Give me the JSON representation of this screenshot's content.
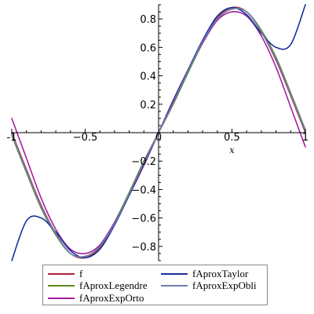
{
  "chart_data": {
    "type": "line",
    "title": "",
    "xlabel": "x",
    "ylabel": "",
    "xlim": [
      -1,
      1
    ],
    "ylim": [
      -0.9,
      0.9
    ],
    "x_ticks": [
      {
        "value": -1,
        "label": "-1"
      },
      {
        "value": -0.5,
        "label": "−0.5"
      },
      {
        "value": 0,
        "label": "0"
      },
      {
        "value": 0.5,
        "label": "0.5"
      },
      {
        "value": 1,
        "label": "1"
      }
    ],
    "y_ticks": [
      {
        "value": 0.8,
        "label": "0.8"
      },
      {
        "value": 0.6,
        "label": "0.6"
      },
      {
        "value": 0.4,
        "label": "0.4"
      },
      {
        "value": 0.2,
        "label": "0.2"
      },
      {
        "value": -0.2,
        "label": "−0.2"
      },
      {
        "value": -0.4,
        "label": "−0.4"
      },
      {
        "value": -0.6,
        "label": "−0.6"
      },
      {
        "value": -0.8,
        "label": "−0.8"
      }
    ],
    "legend_position": "bottom",
    "series": [
      {
        "name": "f",
        "color": "#b0243a",
        "x": [
          -1,
          -0.9,
          -0.8,
          -0.7,
          -0.6,
          -0.5,
          -0.4,
          -0.3,
          -0.2,
          -0.1,
          0,
          0.1,
          0.2,
          0.3,
          0.4,
          0.5,
          0.6,
          0.7,
          0.8,
          0.9,
          1
        ],
        "y": [
          0.0,
          -0.26,
          -0.51,
          -0.71,
          -0.85,
          -0.88,
          -0.81,
          -0.64,
          -0.43,
          -0.21,
          0.0,
          0.21,
          0.43,
          0.64,
          0.81,
          0.88,
          0.85,
          0.71,
          0.51,
          0.26,
          0.0
        ]
      },
      {
        "name": "fAproxLegendre",
        "color": "#5c8a1e",
        "x": [
          -1,
          -0.9,
          -0.8,
          -0.7,
          -0.6,
          -0.5,
          -0.4,
          -0.3,
          -0.2,
          -0.1,
          0,
          0.1,
          0.2,
          0.3,
          0.4,
          0.5,
          0.6,
          0.7,
          0.8,
          0.9,
          1
        ],
        "y": [
          -0.02,
          -0.28,
          -0.53,
          -0.72,
          -0.85,
          -0.87,
          -0.8,
          -0.63,
          -0.42,
          -0.2,
          0.0,
          0.2,
          0.42,
          0.63,
          0.8,
          0.87,
          0.85,
          0.72,
          0.53,
          0.28,
          0.02
        ]
      },
      {
        "name": "fAproxExpOrto",
        "color": "#a020a0",
        "x": [
          -1,
          -0.9,
          -0.8,
          -0.7,
          -0.6,
          -0.5,
          -0.4,
          -0.3,
          -0.2,
          -0.1,
          0,
          0.1,
          0.2,
          0.3,
          0.4,
          0.5,
          0.6,
          0.7,
          0.8,
          0.9,
          1
        ],
        "y": [
          0.1,
          -0.18,
          -0.46,
          -0.68,
          -0.82,
          -0.85,
          -0.79,
          -0.63,
          -0.44,
          -0.23,
          0.0,
          0.23,
          0.44,
          0.63,
          0.79,
          0.85,
          0.82,
          0.68,
          0.46,
          0.18,
          -0.1
        ]
      },
      {
        "name": "fAproxTaylor",
        "color": "#1c2f9c",
        "x": [
          -1,
          -0.9,
          -0.8,
          -0.7,
          -0.6,
          -0.5,
          -0.4,
          -0.3,
          -0.2,
          -0.1,
          0,
          0.1,
          0.2,
          0.3,
          0.4,
          0.5,
          0.6,
          0.7,
          0.8,
          0.9,
          1
        ],
        "y": [
          -0.9,
          -0.62,
          -0.6,
          -0.7,
          -0.83,
          -0.88,
          -0.82,
          -0.65,
          -0.44,
          -0.22,
          0.0,
          0.22,
          0.44,
          0.65,
          0.82,
          0.88,
          0.83,
          0.7,
          0.6,
          0.62,
          0.9
        ]
      },
      {
        "name": "fAproxExpObli",
        "color": "#6b7fa8",
        "x": [
          -1,
          -0.9,
          -0.8,
          -0.7,
          -0.6,
          -0.5,
          -0.4,
          -0.3,
          -0.2,
          -0.1,
          0,
          0.1,
          0.2,
          0.3,
          0.4,
          0.5,
          0.6,
          0.7,
          0.8,
          0.9,
          1
        ],
        "y": [
          -0.01,
          -0.27,
          -0.52,
          -0.71,
          -0.85,
          -0.87,
          -0.8,
          -0.64,
          -0.43,
          -0.21,
          0.0,
          0.21,
          0.43,
          0.64,
          0.8,
          0.87,
          0.85,
          0.71,
          0.52,
          0.27,
          0.01
        ]
      }
    ]
  }
}
